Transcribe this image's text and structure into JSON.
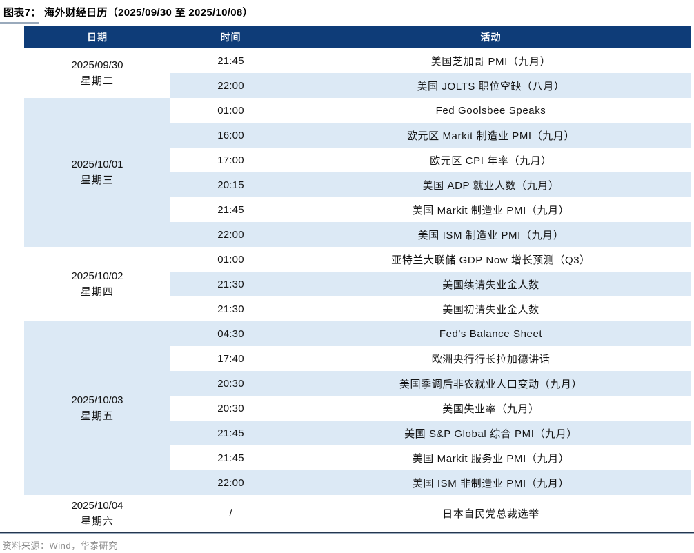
{
  "title": "图表7：  海外财经日历（2025/09/30 至 2025/10/08）",
  "source": "资料来源：Wind，华泰研究",
  "table": {
    "headers": [
      "日期",
      "时间",
      "活动"
    ],
    "groups": [
      {
        "date": "2025/09/30",
        "weekday": "星期二",
        "shaded": false,
        "events": [
          {
            "time": "21:45",
            "activity": "美国芝加哥 PMI（九月）"
          },
          {
            "time": "22:00",
            "activity": "美国 JOLTS 职位空缺（八月）"
          }
        ]
      },
      {
        "date": "2025/10/01",
        "weekday": "星期三",
        "shaded": true,
        "events": [
          {
            "time": "01:00",
            "activity": "Fed Goolsbee Speaks"
          },
          {
            "time": "16:00",
            "activity": "欧元区 Markit 制造业 PMI（九月）"
          },
          {
            "time": "17:00",
            "activity": "欧元区 CPI 年率（九月）"
          },
          {
            "time": "20:15",
            "activity": "美国 ADP 就业人数（九月）"
          },
          {
            "time": "21:45",
            "activity": "美国 Markit 制造业 PMI（九月）"
          },
          {
            "time": "22:00",
            "activity": "美国 ISM 制造业 PMI（九月）"
          }
        ]
      },
      {
        "date": "2025/10/02",
        "weekday": "星期四",
        "shaded": false,
        "events": [
          {
            "time": "01:00",
            "activity": "亚特兰大联储 GDP Now 增长预测（Q3）"
          },
          {
            "time": "21:30",
            "activity": "美国续请失业金人数"
          },
          {
            "time": "21:30",
            "activity": "美国初请失业金人数"
          }
        ]
      },
      {
        "date": "2025/10/03",
        "weekday": "星期五",
        "shaded": true,
        "events": [
          {
            "time": "04:30",
            "activity": "Fed's Balance Sheet"
          },
          {
            "time": "17:40",
            "activity": "欧洲央行行长拉加德讲话"
          },
          {
            "time": "20:30",
            "activity": "美国季调后非农就业人口变动（九月）"
          },
          {
            "time": "20:30",
            "activity": "美国失业率（九月）"
          },
          {
            "time": "21:45",
            "activity": "美国 S&P Global 综合 PMI（九月）"
          },
          {
            "time": "21:45",
            "activity": "美国 Markit 服务业 PMI（九月）"
          },
          {
            "time": "22:00",
            "activity": "美国 ISM 非制造业 PMI（九月）"
          }
        ]
      },
      {
        "date": "2025/10/04",
        "weekday": "星期六",
        "shaded": false,
        "events": [
          {
            "time": "/",
            "activity": "日本自民党总裁选举"
          }
        ]
      }
    ]
  },
  "colors": {
    "header_bg": "#0E3C78",
    "header_text": "#FFFFFF",
    "row_shade": "#DCE9F5",
    "row_plain": "#FFFFFF",
    "title_underline": "#9AAABC",
    "bottom_rule_dark": "#24364F",
    "source_text": "#8C8C8C"
  }
}
